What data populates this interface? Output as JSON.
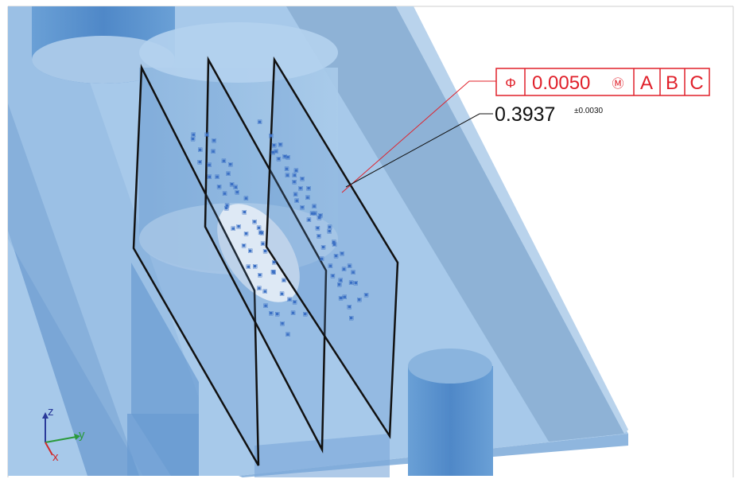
{
  "gdt": {
    "feature_control_frame": {
      "symbol": "Φ",
      "tolerance": "0.0050",
      "modifier": "Ⓜ",
      "datums": [
        "A",
        "B",
        "C"
      ]
    },
    "dimension": {
      "value": "0.3937",
      "tolerance": "±0.0030"
    }
  },
  "axis_triad": {
    "z_label": "z",
    "y_label": "y",
    "x_label": "x"
  },
  "colors": {
    "fcf_red": "#e0202a",
    "part_blue": "#9ec4e6",
    "cylinder_blue": "#5b93cf",
    "point_blue": "#3a6fc4"
  }
}
